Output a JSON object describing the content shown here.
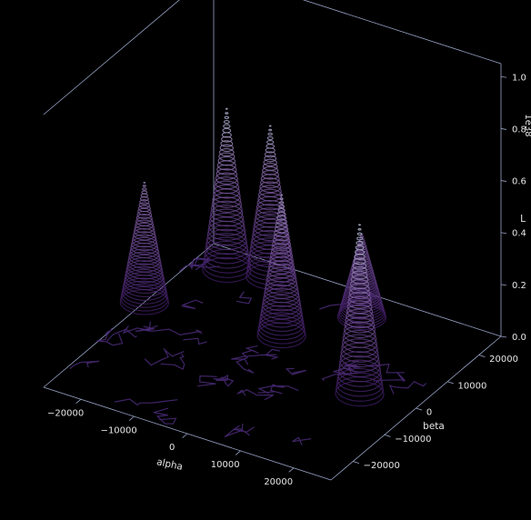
{
  "chart_data": {
    "type": "3d-contour-surface",
    "style": "dark background, stacked contour rings forming peaks, magma-like colormap (dark purple at base to pale cyan at top)",
    "xlabel": "alpha",
    "ylabel": "beta",
    "zlabel": "L",
    "z_offset_label": "1e38",
    "x_ticks": [
      "−20000",
      "−10000",
      "0",
      "10000",
      "20000"
    ],
    "y_ticks": [
      "−20000",
      "−10000",
      "0",
      "10000",
      "20000"
    ],
    "z_ticks": [
      "0.0",
      "0.2",
      "0.4",
      "0.6",
      "0.8",
      "1.0"
    ],
    "xlim": [
      -27000,
      27000
    ],
    "ylim": [
      -27000,
      27000
    ],
    "zlim": [
      0,
      1.05
    ],
    "peaks": [
      {
        "alpha": -27000,
        "beta": 5000,
        "height": 0.46
      },
      {
        "alpha": -21000,
        "beta": 21000,
        "height": 0.62
      },
      {
        "alpha": -14000,
        "beta": 23000,
        "height": 0.58
      },
      {
        "alpha": -3000,
        "beta": 8000,
        "height": 0.54
      },
      {
        "alpha": 5000,
        "beta": 20000,
        "height": 0.32
      },
      {
        "alpha": 17000,
        "beta": -1000,
        "height": 0.65
      }
    ],
    "colors": {
      "background": "#000000",
      "axis_lines": "#9aa6c9",
      "text": "#e6e6e6",
      "colormap_low": "#3b1a5e",
      "colormap_mid": "#7a5a9a",
      "colormap_high": "#cfe8ef"
    }
  }
}
